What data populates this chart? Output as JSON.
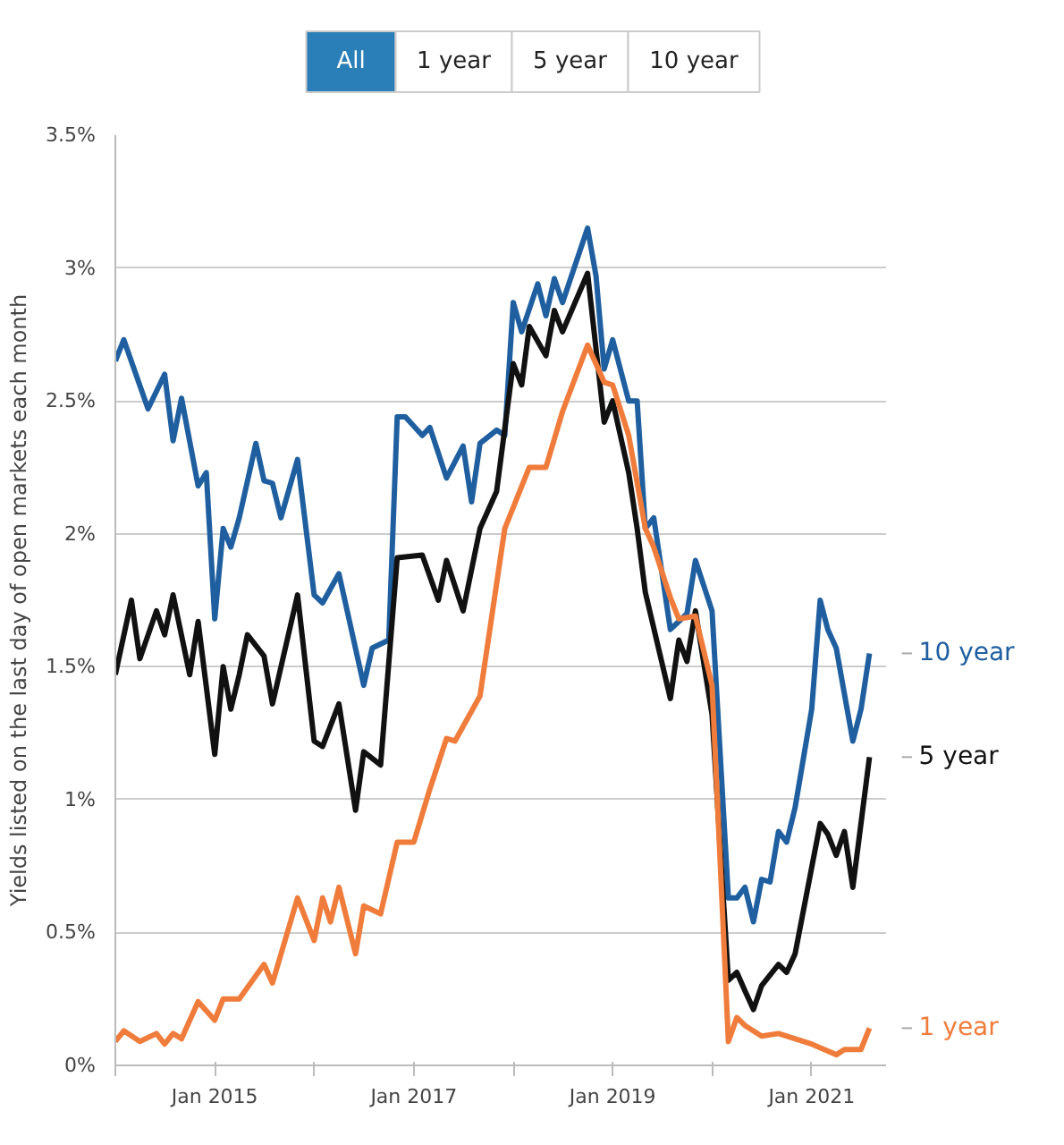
{
  "chart_data": {
    "type": "line",
    "ylabel": "Yields listed on the last day of open markets each month",
    "annotations": [
      "All",
      "1 year",
      "5 year",
      "10 year"
    ],
    "xlim": [
      "2014-01",
      "2021-10"
    ],
    "xticks": [
      {
        "value": "2014-01",
        "label": null
      },
      {
        "value": "2015-01",
        "label": "Jan 2015"
      },
      {
        "value": "2016-01",
        "label": null
      },
      {
        "value": "2017-01",
        "label": "Jan 2017"
      },
      {
        "value": "2018-01",
        "label": null
      },
      {
        "value": "2019-01",
        "label": "Jan 2019"
      },
      {
        "value": "2020-01",
        "label": null
      },
      {
        "value": "2021-01",
        "label": "Jan 2021"
      }
    ],
    "ylim": [
      0,
      3.5
    ],
    "yticks": [
      {
        "value": 0,
        "label": "0%"
      },
      {
        "value": 0.5,
        "label": "0.5%"
      },
      {
        "value": 1,
        "label": "1%"
      },
      {
        "value": 1.5,
        "label": "1.5%"
      },
      {
        "value": 2,
        "label": "2%"
      },
      {
        "value": 2.5,
        "label": "2.5%"
      },
      {
        "value": 3,
        "label": "3%"
      },
      {
        "value": 3.5,
        "label": "3.5%"
      }
    ],
    "grid": "y",
    "legend": false,
    "marker": "none",
    "line_style": "solid",
    "series": [
      {
        "name": "10 year",
        "color": "#1f5fa0",
        "x": [
          "2014-01",
          "2014-02",
          "2014-05",
          "2014-07",
          "2014-08",
          "2014-09",
          "2014-11",
          "2014-12",
          "2015-01",
          "2015-02",
          "2015-03",
          "2015-04",
          "2015-06",
          "2015-07",
          "2015-08",
          "2015-09",
          "2015-11",
          "2016-01",
          "2016-02",
          "2016-04",
          "2016-07",
          "2016-08",
          "2016-10",
          "2016-11",
          "2016-12",
          "2017-02",
          "2017-03",
          "2017-05",
          "2017-07",
          "2017-08",
          "2017-09",
          "2017-11",
          "2017-12",
          "2018-01",
          "2018-02",
          "2018-04",
          "2018-05",
          "2018-06",
          "2018-07",
          "2018-10",
          "2018-11",
          "2018-12",
          "2019-01",
          "2019-03",
          "2019-04",
          "2019-05",
          "2019-06",
          "2019-08",
          "2019-09",
          "2019-10",
          "2019-11",
          "2020-01",
          "2020-03",
          "2020-04",
          "2020-05",
          "2020-06",
          "2020-07",
          "2020-08",
          "2020-09",
          "2020-10",
          "2020-11",
          "2021-01",
          "2021-02",
          "2021-03",
          "2021-04",
          "2021-06",
          "2021-07",
          "2021-08"
        ],
        "values": [
          2.65,
          2.73,
          2.47,
          2.6,
          2.35,
          2.51,
          2.18,
          2.23,
          1.68,
          2.02,
          1.95,
          2.06,
          2.34,
          2.2,
          2.19,
          2.06,
          2.28,
          1.77,
          1.74,
          1.85,
          1.43,
          1.57,
          1.6,
          2.44,
          2.44,
          2.37,
          2.4,
          2.21,
          2.33,
          2.12,
          2.34,
          2.39,
          2.37,
          2.87,
          2.76,
          2.94,
          2.82,
          2.96,
          2.87,
          3.15,
          2.97,
          2.62,
          2.73,
          2.5,
          2.5,
          2.02,
          2.06,
          1.64,
          1.67,
          1.7,
          1.9,
          1.71,
          0.63,
          0.63,
          0.67,
          0.54,
          0.7,
          0.69,
          0.88,
          0.84,
          0.97,
          1.34,
          1.75,
          1.64,
          1.57,
          1.22,
          1.34,
          1.55
        ]
      },
      {
        "name": "5 year",
        "color": "#111111",
        "x": [
          "2014-01",
          "2014-03",
          "2014-04",
          "2014-06",
          "2014-07",
          "2014-08",
          "2014-10",
          "2014-11",
          "2015-01",
          "2015-02",
          "2015-03",
          "2015-04",
          "2015-05",
          "2015-07",
          "2015-08",
          "2015-11",
          "2016-01",
          "2016-02",
          "2016-04",
          "2016-06",
          "2016-07",
          "2016-09",
          "2016-11",
          "2017-02",
          "2017-04",
          "2017-05",
          "2017-07",
          "2017-09",
          "2017-11",
          "2018-01",
          "2018-02",
          "2018-03",
          "2018-05",
          "2018-06",
          "2018-07",
          "2018-10",
          "2018-12",
          "2019-01",
          "2019-03",
          "2019-04",
          "2019-05",
          "2019-08",
          "2019-09",
          "2019-10",
          "2019-11",
          "2020-01",
          "2020-03",
          "2020-04",
          "2020-05",
          "2020-06",
          "2020-07",
          "2020-09",
          "2020-10",
          "2020-11",
          "2021-02",
          "2021-03",
          "2021-04",
          "2021-05",
          "2021-06",
          "2021-08"
        ],
        "values": [
          1.47,
          1.75,
          1.53,
          1.71,
          1.62,
          1.77,
          1.47,
          1.67,
          1.17,
          1.5,
          1.34,
          1.47,
          1.62,
          1.54,
          1.36,
          1.77,
          1.22,
          1.2,
          1.36,
          0.96,
          1.18,
          1.13,
          1.91,
          1.92,
          1.75,
          1.9,
          1.71,
          2.02,
          2.16,
          2.64,
          2.56,
          2.78,
          2.67,
          2.84,
          2.76,
          2.98,
          2.42,
          2.5,
          2.23,
          2.02,
          1.78,
          1.38,
          1.6,
          1.52,
          1.71,
          1.32,
          0.32,
          0.35,
          0.28,
          0.21,
          0.3,
          0.38,
          0.35,
          0.42,
          0.91,
          0.87,
          0.79,
          0.88,
          0.67,
          1.16
        ]
      },
      {
        "name": "1 year",
        "color": "#f07c3c",
        "x": [
          "2014-01",
          "2014-02",
          "2014-04",
          "2014-06",
          "2014-07",
          "2014-08",
          "2014-09",
          "2014-11",
          "2015-01",
          "2015-02",
          "2015-04",
          "2015-07",
          "2015-08",
          "2015-11",
          "2016-01",
          "2016-02",
          "2016-03",
          "2016-04",
          "2016-06",
          "2016-07",
          "2016-09",
          "2016-11",
          "2017-01",
          "2017-03",
          "2017-05",
          "2017-06",
          "2017-09",
          "2017-12",
          "2018-03",
          "2018-05",
          "2018-07",
          "2018-10",
          "2018-12",
          "2019-01",
          "2019-03",
          "2019-05",
          "2019-06",
          "2019-08",
          "2019-09",
          "2019-11",
          "2020-01",
          "2020-02",
          "2020-03",
          "2020-04",
          "2020-05",
          "2020-07",
          "2020-09",
          "2021-01",
          "2021-04",
          "2021-05",
          "2021-07",
          "2021-08"
        ],
        "values": [
          0.09,
          0.13,
          0.09,
          0.12,
          0.08,
          0.12,
          0.1,
          0.24,
          0.17,
          0.25,
          0.25,
          0.38,
          0.31,
          0.63,
          0.47,
          0.63,
          0.54,
          0.67,
          0.42,
          0.6,
          0.57,
          0.84,
          0.84,
          1.04,
          1.23,
          1.22,
          1.39,
          2.02,
          2.25,
          2.25,
          2.46,
          2.71,
          2.57,
          2.56,
          2.37,
          2.02,
          1.95,
          1.76,
          1.68,
          1.69,
          1.43,
          0.74,
          0.09,
          0.18,
          0.15,
          0.11,
          0.12,
          0.08,
          0.04,
          0.06,
          0.06,
          0.14
        ]
      }
    ]
  }
}
